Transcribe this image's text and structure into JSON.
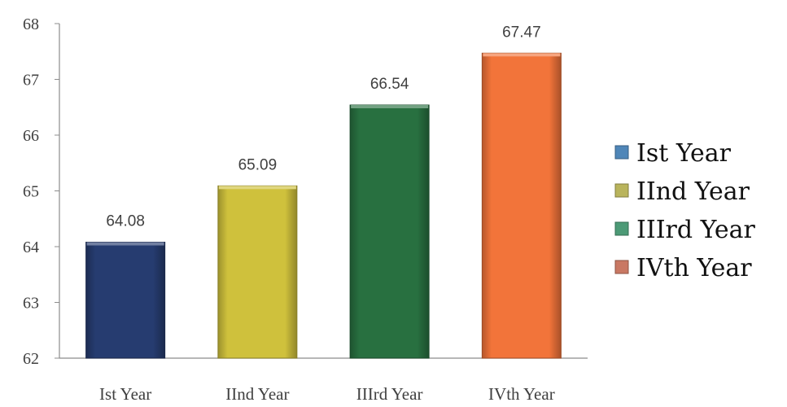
{
  "chart_data": {
    "type": "bar",
    "title": "",
    "xlabel": "",
    "ylabel": "",
    "categories": [
      "Ist Year",
      "IInd Year",
      "IIIrd Year",
      "IVth Year"
    ],
    "values": [
      64.08,
      65.09,
      66.54,
      67.47
    ],
    "data_labels": [
      "64.08",
      "65.09",
      "66.54",
      "67.47"
    ],
    "ylim": [
      62,
      68
    ],
    "yticks": [
      62,
      63,
      64,
      65,
      66,
      67,
      68
    ],
    "colors": [
      "#263c70",
      "#cfc13c",
      "#287040",
      "#f2743a"
    ],
    "legend": {
      "placement": "right",
      "entries": [
        "Ist Year",
        "IInd Year",
        "IIIrd Year",
        "IVth Year"
      ],
      "colors": [
        "#4f86b8",
        "#b9b45c",
        "#4c9a76",
        "#c97863"
      ]
    },
    "grid": false
  }
}
